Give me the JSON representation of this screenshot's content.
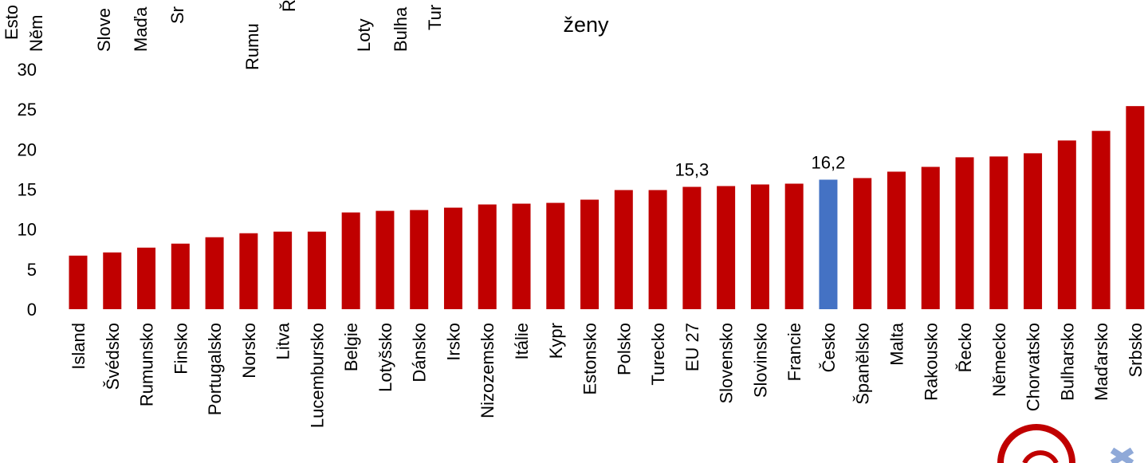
{
  "chart_data": {
    "type": "bar",
    "title": "ženy",
    "categories": [
      "Island",
      "Švédsko",
      "Rumunsko",
      "Finsko",
      "Portugalsko",
      "Norsko",
      "Litva",
      "Lucembursko",
      "Belgie",
      "Lotyšsko",
      "Dánsko",
      "Irsko",
      "Nizozemsko",
      "Itálie",
      "Kypr",
      "Estonsko",
      "Polsko",
      "Turecko",
      "EU 27",
      "Slovensko",
      "Slovinsko",
      "Francie",
      "Česko",
      "Španělsko",
      "Malta",
      "Rakousko",
      "Řecko",
      "Německo",
      "Chorvatsko",
      "Bulharsko",
      "Maďarsko",
      "Srbsko"
    ],
    "values": [
      6.7,
      7.1,
      7.7,
      8.2,
      9.0,
      9.5,
      9.7,
      9.7,
      12.1,
      12.3,
      12.4,
      12.7,
      13.1,
      13.2,
      13.3,
      13.7,
      14.9,
      14.9,
      15.3,
      15.4,
      15.6,
      15.7,
      16.2,
      16.4,
      17.2,
      17.8,
      19.0,
      19.1,
      19.5,
      21.1,
      22.3,
      25.4
    ],
    "value_labels": [
      null,
      null,
      null,
      null,
      null,
      null,
      null,
      null,
      null,
      null,
      null,
      null,
      null,
      null,
      null,
      null,
      null,
      null,
      "15,3",
      null,
      null,
      null,
      "16,2",
      null,
      null,
      null,
      null,
      null,
      null,
      null,
      null,
      null
    ],
    "colors": [
      "#c00000",
      "#c00000",
      "#c00000",
      "#c00000",
      "#c00000",
      "#c00000",
      "#c00000",
      "#c00000",
      "#c00000",
      "#c00000",
      "#c00000",
      "#c00000",
      "#c00000",
      "#c00000",
      "#c00000",
      "#c00000",
      "#c00000",
      "#c00000",
      "#c00000",
      "#c00000",
      "#c00000",
      "#c00000",
      "#4472c4",
      "#c00000",
      "#c00000",
      "#c00000",
      "#c00000",
      "#c00000",
      "#c00000",
      "#c00000",
      "#c00000",
      "#c00000"
    ],
    "ylim": [
      0,
      30
    ],
    "yticks": [
      0,
      5,
      10,
      15,
      20,
      25,
      30
    ],
    "grid": false,
    "clipped_labels": [
      "Esto",
      "Něm",
      "Slove",
      "Maďa",
      "Sr",
      "Rumu",
      "Ř",
      "Loty",
      "Bulha",
      "Tur"
    ]
  }
}
